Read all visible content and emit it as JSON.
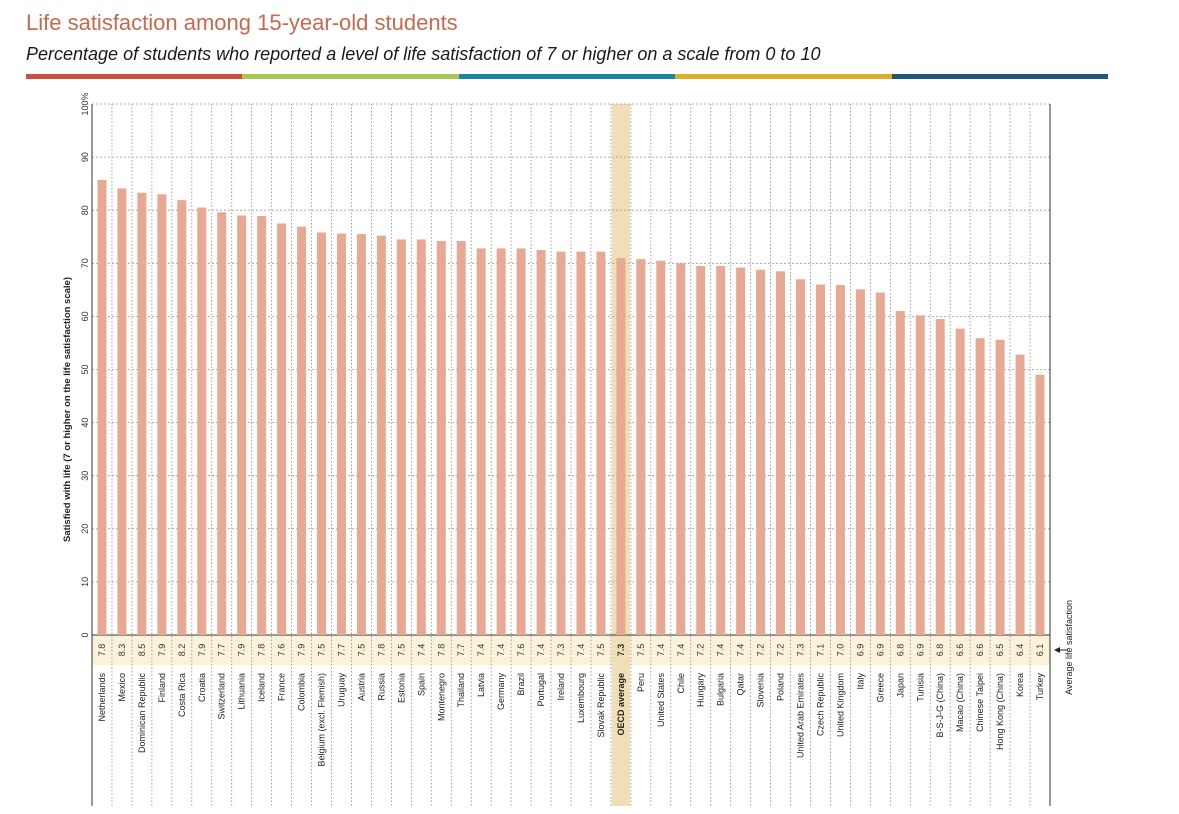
{
  "header": {
    "title": "Life satisfaction among 15-year-old students",
    "subtitle": "Percentage of students who reported a level of life satisfaction of 7 or higher on a scale from 0 to 10"
  },
  "colors": {
    "title": "#c8684f",
    "bar": "#e8a994",
    "highlight": "#f0dfb6",
    "stripe": [
      "#c9503f",
      "#a9c755",
      "#1e84a5",
      "#dcae2b",
      "#1d5a7a"
    ]
  },
  "chart_data": {
    "type": "bar",
    "orientation": "vertical",
    "ylabel": "Satisfied with life (7 or higher on the life satisfaction scale)",
    "ylim": [
      0,
      100
    ],
    "y_ticks": [
      "0",
      "10",
      "20",
      "30",
      "40",
      "50",
      "60",
      "70",
      "80",
      "90",
      "100%"
    ],
    "average_label": "Average life satisfaction",
    "highlight_category": "OECD average",
    "grid": true,
    "categories": [
      "Netherlands",
      "Mexico",
      "Dominican Republic",
      "Finland",
      "Costa Rica",
      "Croatia",
      "Switzerland",
      "Lithuania",
      "Iceland",
      "France",
      "Colombia",
      "Belgium (excl. Flemish)",
      "Uruguay",
      "Austria",
      "Russia",
      "Estonia",
      "Spain",
      "Montenegro",
      "Thailand",
      "Latvia",
      "Germany",
      "Brazil",
      "Portugal",
      "Ireland",
      "Luxembourg",
      "Slovak Republic",
      "OECD average",
      "Peru",
      "United States",
      "Chile",
      "Hungary",
      "Bulgaria",
      "Qatar",
      "Slovenia",
      "Poland",
      "United Arab Emirates",
      "Czech Republic",
      "United Kingdom",
      "Italy",
      "Greece",
      "Japan",
      "Tunisia",
      "B-S-J-G (China)",
      "Macao (China)",
      "Chinese Taipei",
      "Hong Kong (China)",
      "Korea",
      "Turkey"
    ],
    "values": [
      85.7,
      84.1,
      83.3,
      83.0,
      81.9,
      80.5,
      79.6,
      79.0,
      78.9,
      77.5,
      76.9,
      75.8,
      75.6,
      75.5,
      75.2,
      74.5,
      74.5,
      74.2,
      74.2,
      72.8,
      72.8,
      72.8,
      72.5,
      72.2,
      72.2,
      72.2,
      71.0,
      70.8,
      70.5,
      70.0,
      69.5,
      69.5,
      69.2,
      68.8,
      68.5,
      67.0,
      66.0,
      65.9,
      65.1,
      64.5,
      61.0,
      60.2,
      59.5,
      57.7,
      55.9,
      55.6,
      52.8,
      49.0
    ],
    "average_scores": [
      "7.8",
      "8.3",
      "8.5",
      "7.9",
      "8.2",
      "7.9",
      "7.7",
      "7.9",
      "7.8",
      "7.6",
      "7.9",
      "7.5",
      "7.7",
      "7.5",
      "7.8",
      "7.5",
      "7.4",
      "7.8",
      "7.7",
      "7.4",
      "7.4",
      "7.6",
      "7.4",
      "7.3",
      "7.4",
      "7.5",
      "7.3",
      "7.5",
      "7.4",
      "7.4",
      "7.2",
      "7.4",
      "7.4",
      "7.2",
      "7.2",
      "7.3",
      "7.1",
      "7.0",
      "6.9",
      "6.9",
      "6.8",
      "6.9",
      "6.8",
      "6.6",
      "6.6",
      "6.5",
      "6.4",
      "6.1"
    ]
  }
}
